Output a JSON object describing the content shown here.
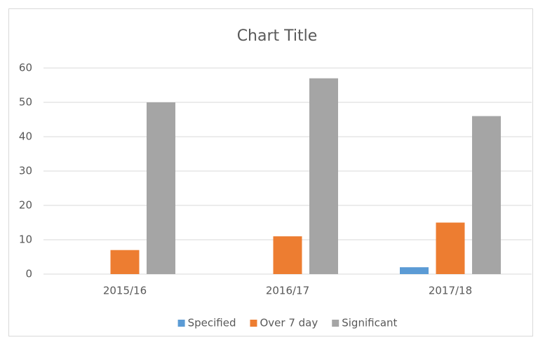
{
  "chart_data": {
    "type": "bar",
    "title": "Chart Title",
    "categories": [
      "2015/16",
      "2016/17",
      "2017/18"
    ],
    "series": [
      {
        "name": "Specified",
        "color": "#5b9bd5",
        "values": [
          0,
          0,
          2
        ]
      },
      {
        "name": "Over 7 day",
        "color": "#ed7d31",
        "values": [
          7,
          11,
          15
        ]
      },
      {
        "name": "Significant",
        "color": "#a5a5a5",
        "values": [
          50,
          57,
          46
        ]
      }
    ],
    "ylim": [
      0,
      60
    ],
    "yticks": [
      0,
      10,
      20,
      30,
      40,
      50,
      60
    ],
    "grid": true,
    "legend": "bottom"
  }
}
